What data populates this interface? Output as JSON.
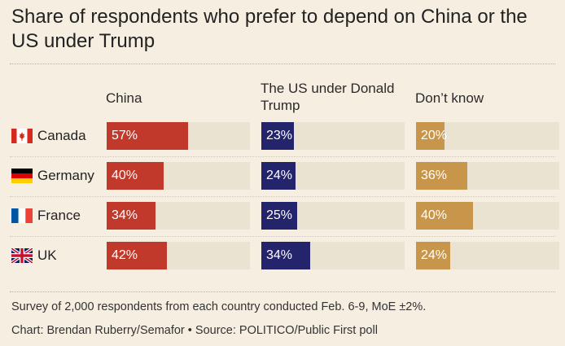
{
  "title": "Share of respondents who prefer to depend on China or the US under Trump",
  "chart_data": {
    "type": "bar",
    "orientation": "horizontal",
    "stacked": false,
    "xlim": [
      0,
      100
    ],
    "categories": [
      "Canada",
      "Germany",
      "France",
      "UK"
    ],
    "series": [
      {
        "name": "China",
        "values": [
          57,
          40,
          34,
          42
        ],
        "color": "#c0392b"
      },
      {
        "name": "The US under Donald Trump",
        "values": [
          23,
          24,
          25,
          34
        ],
        "color": "#23246b"
      },
      {
        "name": "Don’t know",
        "values": [
          20,
          36,
          40,
          24
        ],
        "color": "#c8964a"
      }
    ],
    "value_labels": [
      [
        "57%",
        "40%",
        "34%",
        "42%"
      ],
      [
        "23%",
        "24%",
        "25%",
        "34%"
      ],
      [
        "20%",
        "36%",
        "40%",
        "24%"
      ]
    ]
  },
  "headers": {
    "china": "China",
    "us_line1": "The US under Donald",
    "us_line2": "Trump",
    "dont_know": "Don’t know"
  },
  "rows": [
    {
      "country": "Canada",
      "flag": "canada-flag-icon"
    },
    {
      "country": "Germany",
      "flag": "germany-flag-icon"
    },
    {
      "country": "France",
      "flag": "france-flag-icon"
    },
    {
      "country": "UK",
      "flag": "uk-flag-icon"
    }
  ],
  "colors": {
    "background": "#f6efe1",
    "track": "#ebe3d1",
    "china": "#c0392b",
    "us": "#23246b",
    "dont_know": "#c8964a"
  },
  "footer": {
    "note": "Survey of 2,000 respondents from each country conducted Feb. 6-9, MoE ±2%.",
    "credit": "Chart: Brendan Ruberry/Semafor • Source: POLITICO/Public First poll"
  }
}
